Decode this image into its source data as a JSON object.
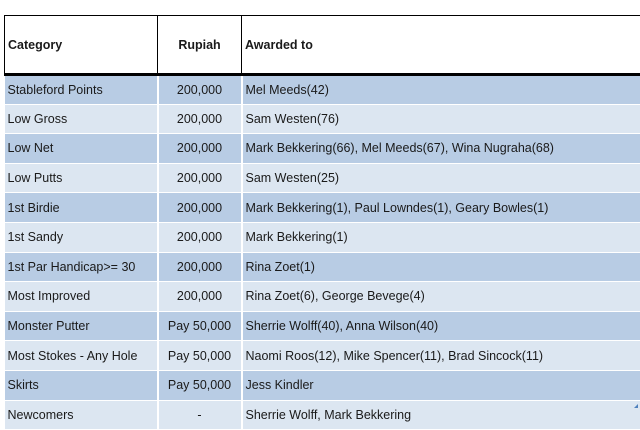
{
  "table": {
    "headers": {
      "category": "Category",
      "rupiah": "Rupiah",
      "awarded": "Awarded to"
    },
    "rows": [
      {
        "category": "Stableford Points",
        "rupiah": "200,000",
        "awarded": "Mel Meeds(42)"
      },
      {
        "category": "Low Gross",
        "rupiah": "200,000",
        "awarded": "Sam Westen(76)"
      },
      {
        "category": "Low Net",
        "rupiah": "200,000",
        "awarded": "Mark Bekkering(66), Mel Meeds(67), Wina Nugraha(68)"
      },
      {
        "category": "Low Putts",
        "rupiah": "200,000",
        "awarded": "Sam Westen(25)"
      },
      {
        "category": "1st Birdie",
        "rupiah": "200,000",
        "awarded": "Mark Bekkering(1), Paul Lowndes(1), Geary Bowles(1)"
      },
      {
        "category": "1st Sandy",
        "rupiah": "200,000",
        "awarded": "Mark Bekkering(1)"
      },
      {
        "category": "1st Par Handicap>= 30",
        "rupiah": "200,000",
        "awarded": "Rina Zoet(1)"
      },
      {
        "category": "Most Improved",
        "rupiah": "200,000",
        "awarded": "Rina Zoet(6), George Bevege(4)"
      },
      {
        "category": "Monster Putter",
        "rupiah": "Pay 50,000",
        "awarded": "Sherrie Wolff(40), Anna Wilson(40)"
      },
      {
        "category": "Most Stokes - Any Hole",
        "rupiah": "Pay 50,000",
        "awarded": "Naomi Roos(12), Mike Spencer(11), Brad Sincock(11)"
      },
      {
        "category": "Skirts",
        "rupiah": "Pay 50,000",
        "awarded": "Jess Kindler"
      },
      {
        "category": "Newcomers",
        "rupiah": "-",
        "awarded": "Sherrie Wolff, Mark Bekkering"
      }
    ]
  },
  "colors": {
    "band_dark": "#b8cce4",
    "band_light": "#dce6f1",
    "accent": "#4f81bd"
  }
}
